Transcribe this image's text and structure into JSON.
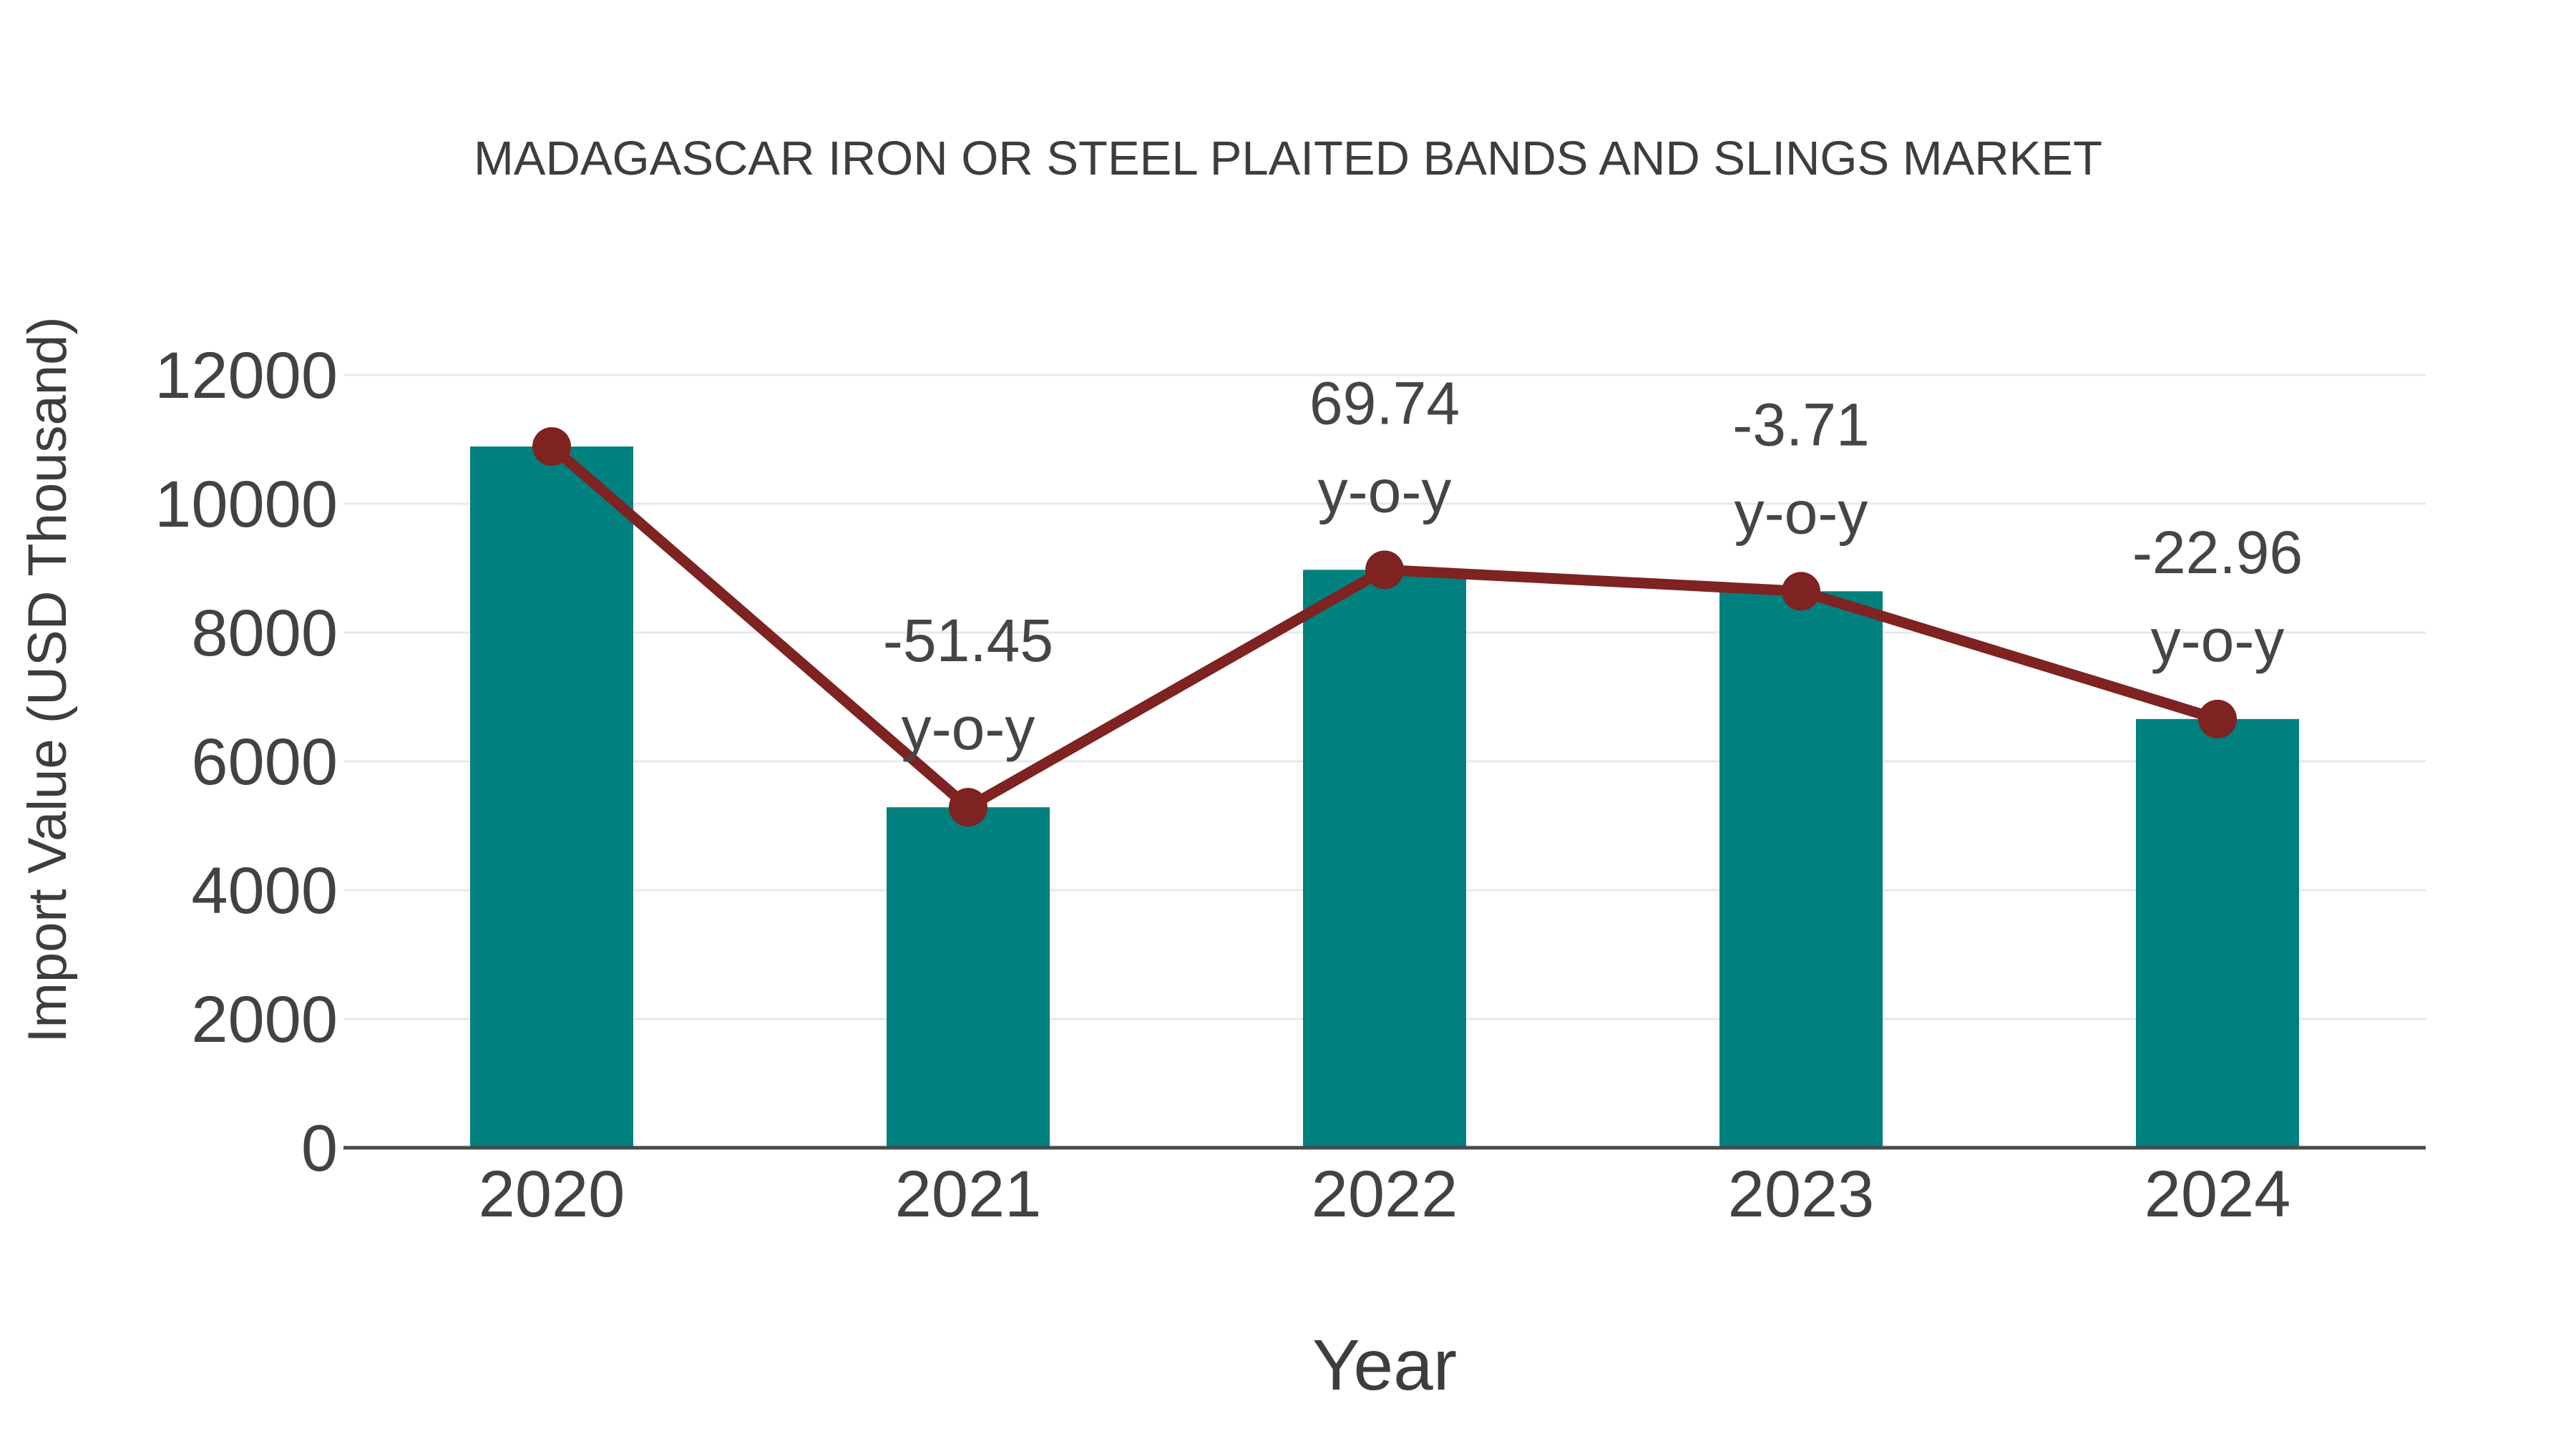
{
  "page": {
    "background": "#ffffff"
  },
  "chart_data": {
    "type": "bar",
    "title": "MADAGASCAR IRON OR STEEL PLAITED BANDS AND SLINGS MARKET",
    "xlabel": "Year",
    "ylabel": "Import Value (USD Thousand)",
    "categories": [
      "2020",
      "2021",
      "2022",
      "2023",
      "2024"
    ],
    "series": [
      {
        "name": "import-value-bars",
        "type": "bar",
        "color": "#00807E",
        "values": [
          10889,
          5287,
          8974,
          8641,
          6657
        ]
      },
      {
        "name": "import-value-line",
        "type": "line",
        "color": "#7E2222",
        "values": [
          10889,
          5287,
          8974,
          8641,
          6657
        ]
      }
    ],
    "annotations": [
      {
        "category": "2021",
        "lines": [
          "-51.45",
          "y-o-y"
        ]
      },
      {
        "category": "2022",
        "lines": [
          "69.74",
          "y-o-y"
        ]
      },
      {
        "category": "2023",
        "lines": [
          "-3.71",
          "y-o-y"
        ]
      },
      {
        "category": "2024",
        "lines": [
          "-22.96",
          "y-o-y"
        ]
      }
    ],
    "ylim": [
      0,
      12000
    ],
    "yticks": [
      0,
      2000,
      4000,
      6000,
      8000,
      10000,
      12000
    ],
    "grid": "horizontal",
    "legend": "none",
    "colors": {
      "bar": "#00807E",
      "line": "#7E2222",
      "marker": "#7E2222",
      "grid": "#e8e8e8",
      "axis": "#4a4a4a",
      "title_text": "#3d3d3d",
      "tick_text": "#424242",
      "annotation_text": "#454545",
      "background": "#ffffff"
    }
  }
}
